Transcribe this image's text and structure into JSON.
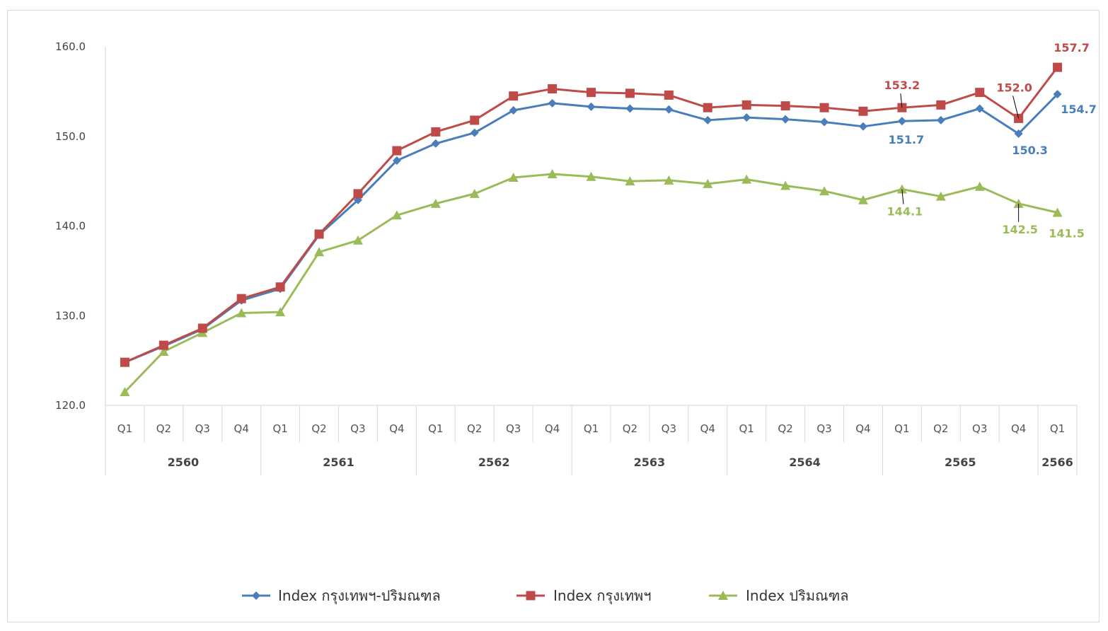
{
  "chart_data": {
    "type": "line",
    "title": "",
    "xlabel": "",
    "ylabel": "",
    "ylim": [
      120,
      160
    ],
    "yticks": [
      "120.0",
      "130.0",
      "140.0",
      "150.0",
      "160.0"
    ],
    "grid": false,
    "legend_position": "bottom",
    "categories": [
      "Q1",
      "Q2",
      "Q3",
      "Q4",
      "Q1",
      "Q2",
      "Q3",
      "Q4",
      "Q1",
      "Q2",
      "Q3",
      "Q4",
      "Q1",
      "Q2",
      "Q3",
      "Q4",
      "Q1",
      "Q2",
      "Q3",
      "Q4",
      "Q1",
      "Q2",
      "Q3",
      "Q4",
      "Q1"
    ],
    "years": [
      {
        "label": "2560",
        "count": 4
      },
      {
        "label": "2561",
        "count": 4
      },
      {
        "label": "2562",
        "count": 4
      },
      {
        "label": "2563",
        "count": 4
      },
      {
        "label": "2564",
        "count": 4
      },
      {
        "label": "2565",
        "count": 4
      },
      {
        "label": "2566",
        "count": 1
      }
    ],
    "series": [
      {
        "name": "Index กรุงเทพฯ-ปริมณฑล",
        "color": "#4a7ebb",
        "marker": "diamond",
        "values": [
          124.8,
          126.6,
          128.5,
          131.7,
          133.0,
          139.0,
          142.9,
          147.3,
          149.2,
          150.4,
          152.9,
          153.7,
          153.3,
          153.1,
          153.0,
          151.8,
          152.1,
          151.9,
          151.6,
          151.1,
          151.7,
          151.8,
          153.1,
          150.3,
          154.7
        ]
      },
      {
        "name": "Index กรุงเทพฯ",
        "color": "#be4b48",
        "marker": "square",
        "values": [
          124.8,
          126.7,
          128.6,
          131.9,
          133.2,
          139.1,
          143.6,
          148.4,
          150.5,
          151.8,
          154.5,
          155.3,
          154.9,
          154.8,
          154.6,
          153.2,
          153.5,
          153.4,
          153.2,
          152.8,
          153.2,
          153.5,
          154.9,
          152.0,
          157.7
        ]
      },
      {
        "name": "Index ปริมณฑล",
        "color": "#9bbb59",
        "marker": "triangle",
        "values": [
          121.5,
          126.0,
          128.1,
          130.3,
          130.4,
          137.1,
          138.4,
          141.2,
          142.5,
          143.6,
          145.4,
          145.8,
          145.5,
          145.0,
          145.1,
          144.7,
          145.2,
          144.5,
          143.9,
          142.9,
          144.1,
          143.3,
          144.4,
          142.5,
          141.5
        ]
      }
    ],
    "data_labels": [
      {
        "series": 1,
        "index": 20,
        "text": "153.2"
      },
      {
        "series": 1,
        "index": 23,
        "text": "152.0"
      },
      {
        "series": 1,
        "index": 24,
        "text": "157.7"
      },
      {
        "series": 0,
        "index": 20,
        "text": "151.7"
      },
      {
        "series": 0,
        "index": 23,
        "text": "150.3"
      },
      {
        "series": 0,
        "index": 24,
        "text": "154.7"
      },
      {
        "series": 2,
        "index": 20,
        "text": "144.1"
      },
      {
        "series": 2,
        "index": 23,
        "text": "142.5"
      },
      {
        "series": 2,
        "index": 24,
        "text": "141.5"
      }
    ]
  }
}
